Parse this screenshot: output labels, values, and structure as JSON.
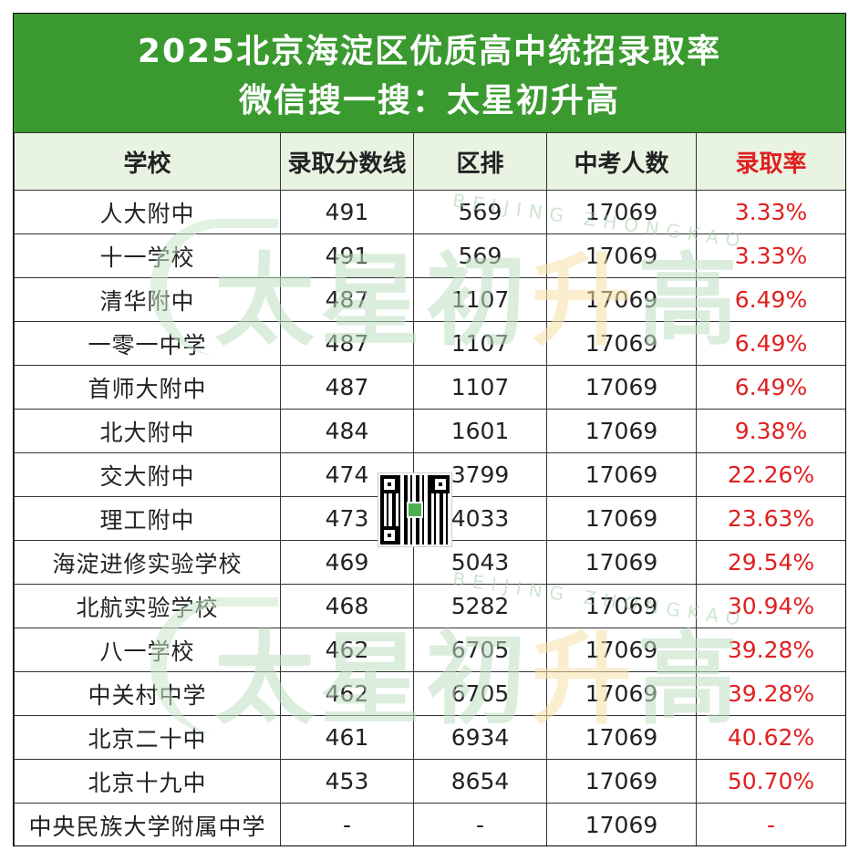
{
  "title": {
    "line1": "2025北京海淀区优质高中统招录取率",
    "line2": "微信搜一搜：太星初升高"
  },
  "watermark": {
    "brand_part1": "太星初",
    "brand_part2": "升",
    "brand_part3": "高",
    "sub": "BEIJING ZHONGKAO"
  },
  "colors": {
    "header_band": "#3a9a2f",
    "header_row": "#e8f3e2",
    "rate_text": "#e02020"
  },
  "table": {
    "headers": [
      "学校",
      "录取分数线",
      "区排",
      "中考人数",
      "录取率"
    ],
    "rows": [
      [
        "人大附中",
        "491",
        "569",
        "17069",
        "3.33%"
      ],
      [
        "十一学校",
        "491",
        "569",
        "17069",
        "3.33%"
      ],
      [
        "清华附中",
        "487",
        "1107",
        "17069",
        "6.49%"
      ],
      [
        "一零一中学",
        "487",
        "1107",
        "17069",
        "6.49%"
      ],
      [
        "首师大附中",
        "487",
        "1107",
        "17069",
        "6.49%"
      ],
      [
        "北大附中",
        "484",
        "1601",
        "17069",
        "9.38%"
      ],
      [
        "交大附中",
        "474",
        "3799",
        "17069",
        "22.26%"
      ],
      [
        "理工附中",
        "473",
        "4033",
        "17069",
        "23.63%"
      ],
      [
        "海淀进修实验学校",
        "469",
        "5043",
        "17069",
        "29.54%"
      ],
      [
        "北航实验学校",
        "468",
        "5282",
        "17069",
        "30.94%"
      ],
      [
        "八一学校",
        "462",
        "6705",
        "17069",
        "39.28%"
      ],
      [
        "中关村中学",
        "462",
        "6705",
        "17069",
        "39.28%"
      ],
      [
        "北京二十中",
        "461",
        "6934",
        "17069",
        "40.62%"
      ],
      [
        "北京十九中",
        "453",
        "8654",
        "17069",
        "50.70%"
      ],
      [
        "中央民族大学附属中学",
        "-",
        "-",
        "17069",
        "-"
      ]
    ]
  }
}
